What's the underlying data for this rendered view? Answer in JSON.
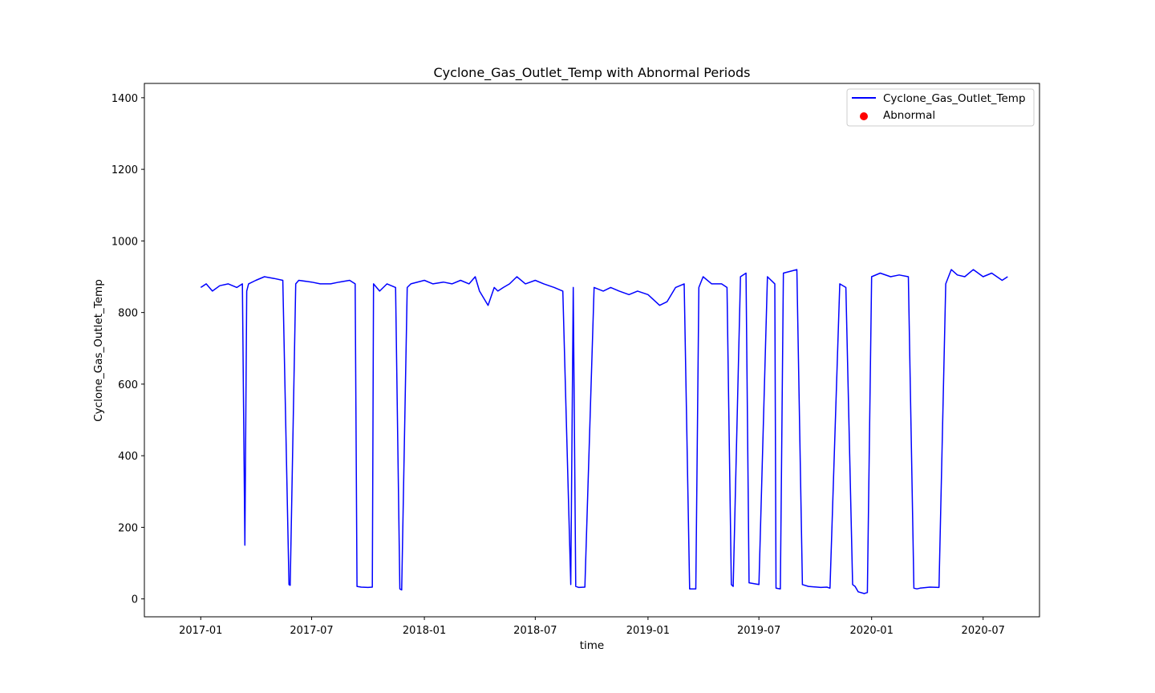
{
  "chart_data": {
    "type": "line",
    "title": "Cyclone_Gas_Outlet_Temp with Abnormal Periods",
    "xlabel": "time",
    "ylabel": "Cyclone_Gas_Outlet_Temp",
    "xlim": [
      "2016-10-01",
      "2020-10-01"
    ],
    "ylim": [
      -50,
      1440
    ],
    "x_ticks": [
      "2017-01",
      "2017-07",
      "2018-01",
      "2018-07",
      "2019-01",
      "2019-07",
      "2020-01",
      "2020-07"
    ],
    "y_ticks": [
      0,
      200,
      400,
      600,
      800,
      1000,
      1200,
      1400
    ],
    "grid": false,
    "legend_position": "upper-right",
    "series": [
      {
        "name": "Cyclone_Gas_Outlet_Temp",
        "color": "#0000ff",
        "style": "line",
        "x": [
          "2017-01-01",
          "2017-01-10",
          "2017-01-20",
          "2017-02-01",
          "2017-02-15",
          "2017-03-01",
          "2017-03-10",
          "2017-03-14",
          "2017-03-17",
          "2017-03-20",
          "2017-04-01",
          "2017-04-15",
          "2017-05-01",
          "2017-05-15",
          "2017-05-25",
          "2017-05-27",
          "2017-06-05",
          "2017-06-10",
          "2017-07-01",
          "2017-07-15",
          "2017-08-01",
          "2017-08-15",
          "2017-09-01",
          "2017-09-10",
          "2017-09-13",
          "2017-09-20",
          "2017-10-01",
          "2017-10-08",
          "2017-10-10",
          "2017-10-20",
          "2017-11-01",
          "2017-11-15",
          "2017-11-22",
          "2017-11-25",
          "2017-12-04",
          "2017-12-10",
          "2018-01-01",
          "2018-01-15",
          "2018-02-01",
          "2018-02-15",
          "2018-03-01",
          "2018-03-15",
          "2018-03-25",
          "2018-04-01",
          "2018-04-15",
          "2018-04-25",
          "2018-05-01",
          "2018-05-10",
          "2018-05-20",
          "2018-06-01",
          "2018-06-15",
          "2018-07-01",
          "2018-07-15",
          "2018-08-01",
          "2018-08-15",
          "2018-08-28",
          "2018-09-01",
          "2018-09-05",
          "2018-09-10",
          "2018-09-20",
          "2018-10-05",
          "2018-10-20",
          "2018-11-01",
          "2018-11-15",
          "2018-12-01",
          "2018-12-15",
          "2019-01-01",
          "2019-01-20",
          "2019-02-01",
          "2019-02-15",
          "2019-03-01",
          "2019-03-10",
          "2019-03-20",
          "2019-03-25",
          "2019-04-01",
          "2019-04-15",
          "2019-05-01",
          "2019-05-10",
          "2019-05-17",
          "2019-05-20",
          "2019-06-01",
          "2019-06-10",
          "2019-06-15",
          "2019-07-01",
          "2019-07-15",
          "2019-07-27",
          "2019-07-29",
          "2019-08-05",
          "2019-08-10",
          "2019-09-01",
          "2019-09-10",
          "2019-09-20",
          "2019-10-10",
          "2019-10-20",
          "2019-10-25",
          "2019-11-10",
          "2019-11-20",
          "2019-12-01",
          "2019-12-05",
          "2019-12-10",
          "2019-12-20",
          "2019-12-25",
          "2020-01-01",
          "2020-01-15",
          "2020-02-01",
          "2020-02-15",
          "2020-03-01",
          "2020-03-10",
          "2020-03-15",
          "2020-03-20",
          "2020-04-05",
          "2020-04-20",
          "2020-05-01",
          "2020-05-10",
          "2020-05-20",
          "2020-06-01",
          "2020-06-15",
          "2020-07-01",
          "2020-07-15",
          "2020-08-01",
          "2020-08-10"
        ],
        "y": [
          870,
          880,
          860,
          875,
          880,
          870,
          880,
          150,
          860,
          880,
          890,
          900,
          895,
          890,
          40,
          38,
          880,
          890,
          885,
          880,
          880,
          885,
          890,
          880,
          35,
          33,
          32,
          33,
          880,
          860,
          880,
          870,
          28,
          25,
          870,
          880,
          890,
          880,
          885,
          880,
          890,
          880,
          900,
          860,
          820,
          870,
          860,
          870,
          880,
          900,
          880,
          890,
          880,
          870,
          860,
          40,
          870,
          35,
          32,
          33,
          870,
          860,
          870,
          860,
          850,
          860,
          850,
          820,
          830,
          870,
          880,
          28,
          28,
          870,
          900,
          880,
          880,
          870,
          40,
          35,
          900,
          910,
          45,
          40,
          900,
          880,
          30,
          28,
          910,
          920,
          40,
          35,
          32,
          33,
          30,
          880,
          870,
          40,
          35,
          20,
          15,
          18,
          900,
          910,
          900,
          905,
          900,
          30,
          28,
          30,
          33,
          32,
          880,
          920,
          905,
          900,
          920,
          900,
          910,
          890,
          900
        ]
      },
      {
        "name": "Abnormal",
        "color": "#ff0000",
        "style": "scatter",
        "x": [],
        "y": []
      }
    ]
  }
}
